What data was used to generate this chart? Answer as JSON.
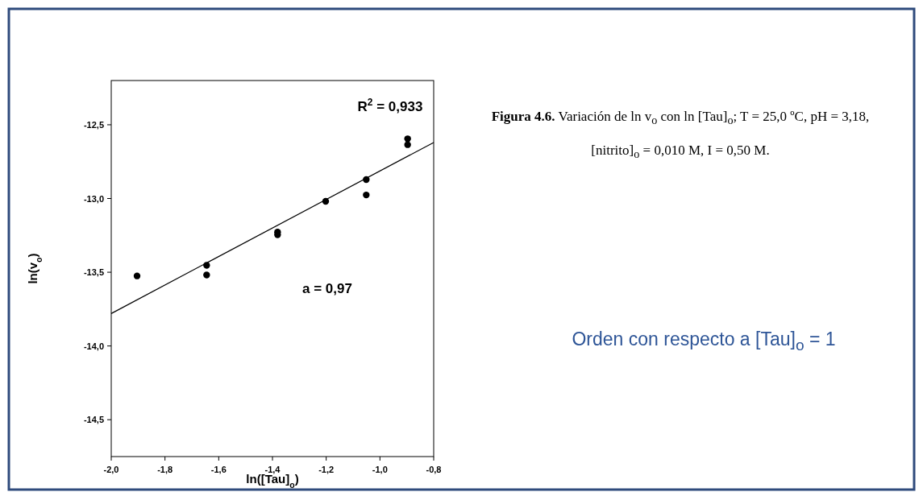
{
  "chart_data": {
    "type": "scatter",
    "xlabel": "ln([Tau]$_{o}$)",
    "ylabel": "ln(v$_{o}$)",
    "xlim": [
      -2.0,
      -0.8
    ],
    "ylim": [
      -14.75,
      -12.2
    ],
    "xticks": [
      {
        "value": -2.0,
        "label": "-2,0"
      },
      {
        "value": -1.8,
        "label": "-1,8"
      },
      {
        "value": -1.6,
        "label": "-1,6"
      },
      {
        "value": -1.4,
        "label": "-1,4"
      },
      {
        "value": -1.2,
        "label": "-1,2"
      },
      {
        "value": -1.0,
        "label": "-1,0"
      },
      {
        "value": -0.8,
        "label": "-0,8"
      }
    ],
    "yticks": [
      {
        "value": -12.5,
        "label": "-12,5"
      },
      {
        "value": -13.0,
        "label": "-13,0"
      },
      {
        "value": -13.5,
        "label": "-13,5"
      },
      {
        "value": -14.0,
        "label": "-14,0"
      },
      {
        "value": -14.5,
        "label": "-14,5"
      }
    ],
    "grid": false,
    "series": [
      {
        "marker": "circle",
        "color": "#000000",
        "x": [
          -1.904,
          -1.645,
          -1.645,
          -1.381,
          -1.381,
          -1.202,
          -1.051,
          -1.051,
          -0.897,
          -0.897
        ],
        "values": [
          -13.525,
          -13.453,
          -13.519,
          -13.228,
          -13.246,
          -13.019,
          -12.872,
          -12.976,
          -12.595,
          -12.635
        ]
      },
      {
        "type": "line",
        "marker": "none",
        "color": "#000000",
        "x": [
          -2.0,
          -0.8
        ],
        "values": [
          -13.78,
          -12.62
        ]
      }
    ],
    "annotations": [
      "R$^{2}$ = 0,933",
      "a = 0,97",
      "Figura 4.6.",
      "Variación de ln v$_{o}$ con ln [Tau]$_{o}$; T = 25,0 ºC, pH = 3,18, [nitrito]$_{o}$ = 0,010 M, I = 0,50 M.",
      "Orden con respecto a [Tau]$_{o}$ = 1"
    ]
  }
}
